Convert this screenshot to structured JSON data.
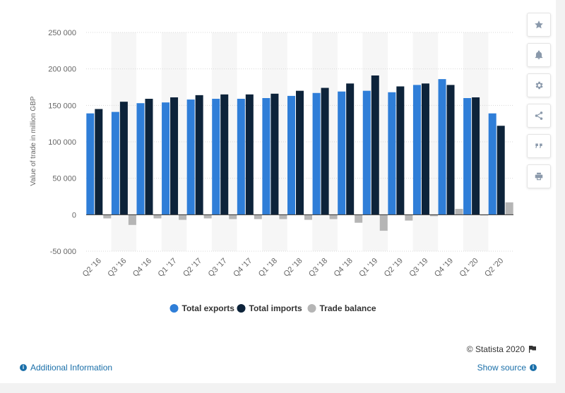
{
  "chart_data": {
    "type": "bar",
    "title": "",
    "xlabel": "",
    "ylabel": "Value of trade in million GBP",
    "ylim": [
      -50000,
      250000
    ],
    "yticks": [
      250000,
      200000,
      150000,
      100000,
      50000,
      0,
      -50000
    ],
    "ytick_labels": [
      "250 000",
      "200 000",
      "150 000",
      "100 000",
      "50 000",
      "0",
      "-50 000"
    ],
    "grid": true,
    "legend_position": "bottom-center",
    "categories": [
      "Q2 '16",
      "Q3 '16",
      "Q4 '16",
      "Q1 '17",
      "Q2 '17",
      "Q3 '17",
      "Q4 '17",
      "Q1 '18",
      "Q2 '18",
      "Q3 '18",
      "Q4 '18",
      "Q1 '19",
      "Q2 '19",
      "Q3 '19",
      "Q4 '19",
      "Q1 '20",
      "Q2 '20"
    ],
    "series": [
      {
        "name": "Total exports",
        "color": "#2f7ed8",
        "values": [
          139000,
          141000,
          153000,
          154000,
          158000,
          159000,
          159000,
          160000,
          163000,
          167000,
          169000,
          170000,
          168000,
          178000,
          186000,
          160000,
          139000
        ]
      },
      {
        "name": "Total imports",
        "color": "#0d233a",
        "values": [
          145000,
          155000,
          159000,
          161000,
          164000,
          165000,
          165000,
          166000,
          170000,
          174000,
          180000,
          191000,
          176000,
          180000,
          178000,
          161000,
          122000
        ]
      },
      {
        "name": "Trade balance",
        "color": "#b5b5b5",
        "values": [
          -5000,
          -14000,
          -5000,
          -7000,
          -5000,
          -6000,
          -6000,
          -6000,
          -7000,
          -6000,
          -11000,
          -22000,
          -8000,
          -2000,
          8000,
          -1000,
          17000
        ]
      }
    ]
  },
  "toolbar": {
    "icons": [
      "star-icon",
      "bell-icon",
      "gear-icon",
      "share-icon",
      "quote-icon",
      "print-icon"
    ]
  },
  "footer": {
    "credit": "© Statista 2020",
    "additional_info": "Additional Information",
    "show_source": "Show source"
  }
}
